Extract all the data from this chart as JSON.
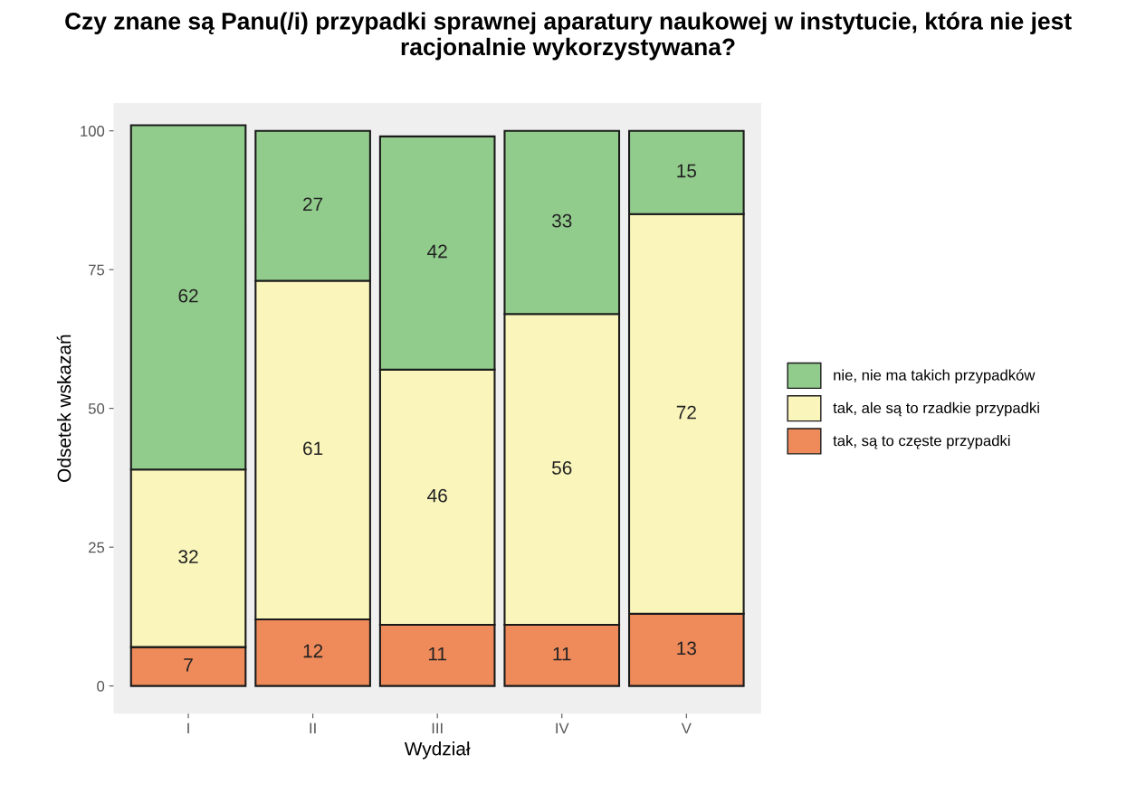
{
  "chart_data": {
    "type": "bar",
    "title": "Czy znane są Panu(/i) przypadki sprawnej aparatury naukowej w instytucie, która nie jest racjonalnie wykorzystywana?",
    "xlabel": "Wydział",
    "ylabel": "Odsetek wskazań",
    "categories": [
      "I",
      "II",
      "III",
      "IV",
      "V"
    ],
    "stacked": true,
    "series": [
      {
        "name": "tak, są to częste przypadki",
        "color": "#ef8a5a",
        "values": [
          7,
          12,
          11,
          11,
          13
        ]
      },
      {
        "name": "tak, ale są to rzadkie przypadki",
        "color": "#faf5bb",
        "values": [
          32,
          61,
          46,
          56,
          72
        ]
      },
      {
        "name": "nie, nie ma takich przypadków",
        "color": "#92cc8c",
        "values": [
          62,
          27,
          42,
          33,
          15
        ]
      }
    ],
    "ylim": [
      -5,
      105
    ],
    "yticks": [
      0,
      25,
      50,
      75,
      100
    ],
    "data_labels": true,
    "legend": "right",
    "grid": false
  }
}
